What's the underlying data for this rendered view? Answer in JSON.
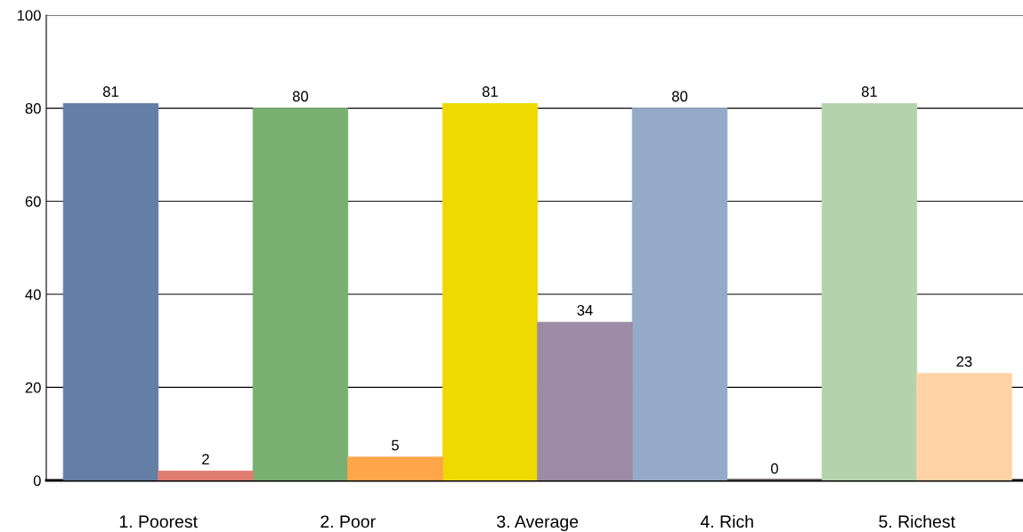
{
  "chart_data": {
    "type": "bar",
    "categories": [
      "1. Poorest",
      "2. Poor",
      "3. Average",
      "4. Rich",
      "5. Richest"
    ],
    "series": [
      {
        "colors": [
          "#647ea6",
          "#7aaf72",
          "#eed900",
          "#94aac8",
          "#b4d3ad"
        ],
        "values": [
          81,
          80,
          81,
          80,
          81
        ]
      },
      {
        "colors": [
          "#e07b72",
          "#ffa54a",
          "#9d8aa4",
          "#8e6f73",
          "#ffd3a6"
        ],
        "values": [
          2,
          5,
          34,
          0,
          23
        ]
      }
    ],
    "ylim": [
      0,
      100
    ],
    "yticks": [
      0,
      20,
      40,
      60,
      80,
      100
    ],
    "grid": "y",
    "data_labels": true
  }
}
